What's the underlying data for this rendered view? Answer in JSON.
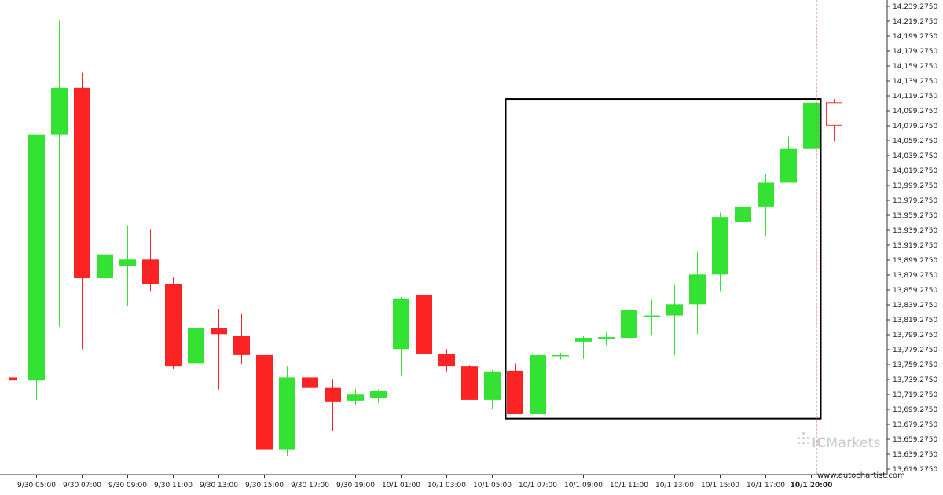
{
  "chart_data": {
    "type": "candlestick",
    "ylim": [
      13619.275,
      14239.275
    ],
    "y_ticks": [
      14239.275,
      14219.275,
      14199.275,
      14179.275,
      14159.275,
      14139.275,
      14119.275,
      14099.275,
      14079.275,
      14059.275,
      14039.275,
      14019.275,
      13999.275,
      13979.275,
      13959.275,
      13939.275,
      13919.275,
      13899.275,
      13879.275,
      13859.275,
      13839.275,
      13819.275,
      13799.275,
      13779.275,
      13759.275,
      13739.275,
      13719.275,
      13699.275,
      13679.275,
      13659.275,
      13639.275,
      13619.275
    ],
    "y_tick_labels": [
      "14,239.2750",
      "14,219.2750",
      "14,199.2750",
      "14,179.2750",
      "14,159.2750",
      "14,139.2750",
      "14,119.2750",
      "14,099.2750",
      "14,079.2750",
      "14,059.2750",
      "14,039.2750",
      "14,019.2750",
      "13,999.2750",
      "13,979.2750",
      "13,959.2750",
      "13,939.2750",
      "13,919.2750",
      "13,899.2750",
      "13,879.2750",
      "13,859.2750",
      "13,839.2750",
      "13,819.2750",
      "13,799.2750",
      "13,779.2750",
      "13,759.2750",
      "13,739.2750",
      "13,719.2750",
      "13,699.2750",
      "13,679.2750",
      "13,659.2750",
      "13,639.2750",
      "13,619.2750"
    ],
    "x_tick_labels": [
      {
        "index": 1,
        "label": "9/30 05:00",
        "bold": false
      },
      {
        "index": 3,
        "label": "9/30 07:00",
        "bold": false
      },
      {
        "index": 5,
        "label": "9/30 09:00",
        "bold": false
      },
      {
        "index": 7,
        "label": "9/30 11:00",
        "bold": false
      },
      {
        "index": 9,
        "label": "9/30 13:00",
        "bold": false
      },
      {
        "index": 11,
        "label": "9/30 15:00",
        "bold": false
      },
      {
        "index": 13,
        "label": "9/30 17:00",
        "bold": false
      },
      {
        "index": 15,
        "label": "9/30 19:00",
        "bold": false
      },
      {
        "index": 17,
        "label": "10/1 01:00",
        "bold": false
      },
      {
        "index": 19,
        "label": "10/1 03:00",
        "bold": false
      },
      {
        "index": 21,
        "label": "10/1 05:00",
        "bold": false
      },
      {
        "index": 23,
        "label": "10/1 07:00",
        "bold": false
      },
      {
        "index": 25,
        "label": "10/1 09:00",
        "bold": false
      },
      {
        "index": 27,
        "label": "10/1 11:00",
        "bold": false
      },
      {
        "index": 29,
        "label": "10/1 13:00",
        "bold": false
      },
      {
        "index": 31,
        "label": "10/1 15:00",
        "bold": false
      },
      {
        "index": 33,
        "label": "10/1 17:00",
        "bold": false
      },
      {
        "index": 35,
        "label": "10/1 20:00",
        "bold": true
      }
    ],
    "candles": [
      {
        "o": 13742,
        "h": 13742,
        "l": 13738,
        "c": 13738,
        "color": "red"
      },
      {
        "o": 13738,
        "h": 14067,
        "l": 13712,
        "c": 14067
      },
      {
        "o": 14067,
        "h": 14220,
        "l": 13810,
        "c": 14130
      },
      {
        "o": 14130,
        "h": 14150,
        "l": 13780,
        "c": 13875
      },
      {
        "o": 13875,
        "h": 13917,
        "l": 13855,
        "c": 13907
      },
      {
        "o": 13891,
        "h": 13946,
        "l": 13837,
        "c": 13900
      },
      {
        "o": 13900,
        "h": 13940,
        "l": 13858,
        "c": 13867
      },
      {
        "o": 13867,
        "h": 13876,
        "l": 13753,
        "c": 13757
      },
      {
        "o": 13761,
        "h": 13876,
        "l": 13761,
        "c": 13808
      },
      {
        "o": 13808,
        "h": 13834,
        "l": 13726,
        "c": 13800
      },
      {
        "o": 13798,
        "h": 13828,
        "l": 13760,
        "c": 13772
      },
      {
        "o": 13772,
        "h": 13772,
        "l": 13645,
        "c": 13645
      },
      {
        "o": 13645,
        "h": 13757,
        "l": 13637,
        "c": 13742
      },
      {
        "o": 13742,
        "h": 13762,
        "l": 13703,
        "c": 13728
      },
      {
        "o": 13728,
        "h": 13740,
        "l": 13670,
        "c": 13710
      },
      {
        "o": 13711,
        "h": 13727,
        "l": 13705,
        "c": 13719
      },
      {
        "o": 13715,
        "h": 13726,
        "l": 13708,
        "c": 13724
      },
      {
        "o": 13780,
        "h": 13850,
        "l": 13745,
        "c": 13848
      },
      {
        "o": 13852,
        "h": 13856,
        "l": 13746,
        "c": 13773
      },
      {
        "o": 13773,
        "h": 13780,
        "l": 13750,
        "c": 13757
      },
      {
        "o": 13757,
        "h": 13758,
        "l": 13712,
        "c": 13712
      },
      {
        "o": 13712,
        "h": 13752,
        "l": 13700,
        "c": 13750
      },
      {
        "o": 13751,
        "h": 13761,
        "l": 13693,
        "c": 13693
      },
      {
        "o": 13693,
        "h": 13773,
        "l": 13693,
        "c": 13772
      },
      {
        "o": 13772,
        "h": 13775,
        "l": 13766,
        "c": 13772
      },
      {
        "o": 13790,
        "h": 13798,
        "l": 13767,
        "c": 13795
      },
      {
        "o": 13794,
        "h": 13802,
        "l": 13785,
        "c": 13796
      },
      {
        "o": 13795,
        "h": 13832,
        "l": 13795,
        "c": 13832
      },
      {
        "o": 13825,
        "h": 13846,
        "l": 13799,
        "c": 13825
      },
      {
        "o": 13825,
        "h": 13866,
        "l": 13772,
        "c": 13840
      },
      {
        "o": 13840,
        "h": 13910,
        "l": 13800,
        "c": 13880
      },
      {
        "o": 13880,
        "h": 13963,
        "l": 13858,
        "c": 13957
      },
      {
        "o": 13950,
        "h": 14080,
        "l": 13930,
        "c": 13971
      },
      {
        "o": 13971,
        "h": 14015,
        "l": 13932,
        "c": 14003
      },
      {
        "o": 14003,
        "h": 14065,
        "l": 14003,
        "c": 14048
      },
      {
        "o": 14048,
        "h": 14110,
        "l": 14048,
        "c": 14110
      },
      {
        "o": 14110,
        "h": 14115,
        "l": 14058,
        "c": 14080,
        "hollow": true
      }
    ],
    "pattern_box": {
      "start_index": 22,
      "end_index": 35,
      "top": 14115,
      "bottom": 13687
    },
    "current_time_index": 35
  },
  "brand": {
    "name_ic": "IC",
    "name_rest": "Markets"
  },
  "website": "www.autochartist.com",
  "colors": {
    "bull": "#33e233",
    "bear": "#fb2323",
    "hollow_bear": "#e83636",
    "box": "#000000"
  }
}
